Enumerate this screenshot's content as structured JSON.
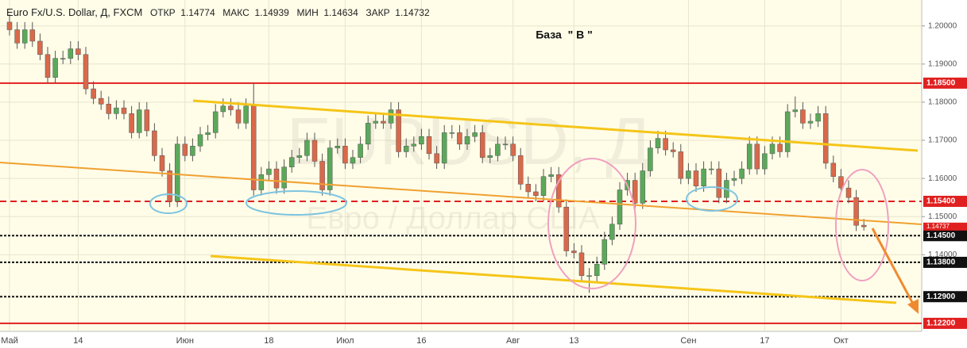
{
  "chart_data": {
    "type": "candlestick",
    "title": "Euro Fx/U.S. Dollar, Д, FXCM",
    "ohlc_header": [
      {
        "label": "ОТКР",
        "value": "1.14774"
      },
      {
        "label": "МАКС",
        "value": "1.14939"
      },
      {
        "label": "МИН",
        "value": "1.14634"
      },
      {
        "label": "ЗАКР",
        "value": "1.14732"
      }
    ],
    "annotation": "База  \" В \"",
    "watermark": [
      "EURUSD, Д",
      "Евро / Доллар США"
    ],
    "categories": [
      "Май",
      null,
      null,
      null,
      null,
      null,
      null,
      null,
      null,
      "14",
      null,
      null,
      null,
      null,
      null,
      null,
      null,
      null,
      null,
      null,
      null,
      null,
      null,
      "Июн",
      null,
      null,
      null,
      null,
      null,
      null,
      null,
      null,
      null,
      null,
      "18",
      null,
      null,
      null,
      null,
      null,
      null,
      null,
      null,
      null,
      "Июл",
      null,
      null,
      null,
      null,
      null,
      null,
      null,
      null,
      null,
      "16",
      null,
      null,
      null,
      null,
      null,
      null,
      null,
      null,
      null,
      null,
      null,
      "Авг",
      null,
      null,
      null,
      null,
      null,
      null,
      null,
      "13",
      null,
      null,
      null,
      null,
      null,
      null,
      null,
      null,
      null,
      null,
      null,
      null,
      null,
      null,
      "Сен",
      null,
      null,
      null,
      null,
      null,
      null,
      null,
      null,
      null,
      "17",
      null,
      null,
      null,
      null,
      null,
      null,
      null,
      null,
      null,
      "Окт",
      null,
      null,
      null
    ],
    "open": [
      1.201,
      1.199,
      1.1955,
      1.199,
      1.196,
      1.1925,
      1.1865,
      1.1915,
      1.1915,
      1.194,
      1.1925,
      1.1835,
      1.181,
      1.1795,
      1.177,
      1.1785,
      1.177,
      1.172,
      1.178,
      1.1725,
      1.166,
      1.162,
      1.154,
      1.169,
      1.166,
      1.1685,
      1.1715,
      1.172,
      1.1775,
      1.179,
      1.178,
      1.1745,
      1.179,
      1.157,
      1.161,
      1.1625,
      1.1575,
      1.163,
      1.1655,
      1.166,
      1.17,
      1.1645,
      1.157,
      1.168,
      1.1685,
      1.164,
      1.1655,
      1.169,
      1.1745,
      1.175,
      1.1745,
      1.178,
      1.167,
      1.1685,
      1.169,
      1.171,
      1.1665,
      1.164,
      1.172,
      1.172,
      1.169,
      1.171,
      1.172,
      1.1655,
      1.166,
      1.169,
      1.169,
      1.166,
      1.1585,
      1.1565,
      1.1555,
      1.1605,
      1.161,
      1.1525,
      1.141,
      1.1405,
      1.1345,
      1.1345,
      1.1375,
      1.144,
      1.148,
      1.157,
      1.1595,
      1.1535,
      1.162,
      1.168,
      1.1705,
      1.1675,
      1.167,
      1.16,
      1.162,
      1.158,
      1.1625,
      1.1625,
      1.155,
      1.1595,
      1.16,
      1.1625,
      1.169,
      1.1625,
      1.1665,
      1.169,
      1.167,
      1.1775,
      1.178,
      1.1745,
      1.175,
      1.177,
      1.164,
      1.1605,
      1.1575,
      1.155,
      1.14774
    ],
    "high": [
      1.203,
      1.201,
      1.201,
      1.201,
      1.198,
      1.1945,
      1.1935,
      1.1935,
      1.196,
      1.196,
      1.1945,
      1.1855,
      1.183,
      1.1815,
      1.1805,
      1.1805,
      1.179,
      1.18,
      1.18,
      1.1745,
      1.168,
      1.164,
      1.171,
      1.171,
      1.1705,
      1.1735,
      1.174,
      1.1795,
      1.181,
      1.181,
      1.18,
      1.181,
      1.185,
      1.163,
      1.1645,
      1.1645,
      1.165,
      1.1675,
      1.168,
      1.172,
      1.172,
      1.1665,
      1.17,
      1.1705,
      1.1705,
      1.1675,
      1.171,
      1.1765,
      1.177,
      1.177,
      1.18,
      1.18,
      1.1705,
      1.171,
      1.173,
      1.173,
      1.1685,
      1.174,
      1.174,
      1.174,
      1.173,
      1.174,
      1.174,
      1.168,
      1.171,
      1.171,
      1.171,
      1.168,
      1.1605,
      1.1585,
      1.1625,
      1.163,
      1.163,
      1.1545,
      1.143,
      1.1425,
      1.1365,
      1.1395,
      1.146,
      1.15,
      1.159,
      1.1615,
      1.1615,
      1.164,
      1.17,
      1.1725,
      1.1725,
      1.1695,
      1.169,
      1.164,
      1.164,
      1.1645,
      1.1645,
      1.1645,
      1.1615,
      1.162,
      1.1645,
      1.171,
      1.171,
      1.1685,
      1.171,
      1.171,
      1.1795,
      1.1815,
      1.18,
      1.177,
      1.179,
      1.179,
      1.166,
      1.1625,
      1.1595,
      1.157,
      1.14939
    ],
    "low": [
      1.1975,
      1.194,
      1.194,
      1.1945,
      1.191,
      1.185,
      1.185,
      1.19,
      1.19,
      1.191,
      1.182,
      1.1795,
      1.178,
      1.1755,
      1.1755,
      1.1755,
      1.1705,
      1.1705,
      1.171,
      1.1645,
      1.1605,
      1.1525,
      1.1525,
      1.1645,
      1.1645,
      1.167,
      1.17,
      1.1705,
      1.176,
      1.1765,
      1.173,
      1.173,
      1.1555,
      1.1555,
      1.1595,
      1.156,
      1.156,
      1.1615,
      1.164,
      1.1645,
      1.163,
      1.1555,
      1.1555,
      1.1665,
      1.1625,
      1.1625,
      1.164,
      1.1675,
      1.173,
      1.173,
      1.173,
      1.1655,
      1.1655,
      1.167,
      1.1675,
      1.165,
      1.1625,
      1.1625,
      1.1705,
      1.1675,
      1.1675,
      1.1695,
      1.164,
      1.164,
      1.1645,
      1.1675,
      1.1645,
      1.157,
      1.155,
      1.154,
      1.154,
      1.159,
      1.151,
      1.1395,
      1.139,
      1.133,
      1.13,
      1.133,
      1.136,
      1.1425,
      1.1465,
      1.1555,
      1.152,
      1.152,
      1.1605,
      1.1665,
      1.166,
      1.1655,
      1.1585,
      1.1585,
      1.1565,
      1.1565,
      1.161,
      1.1535,
      1.1535,
      1.158,
      1.1585,
      1.161,
      1.161,
      1.161,
      1.165,
      1.1655,
      1.1655,
      1.176,
      1.173,
      1.173,
      1.1735,
      1.1625,
      1.159,
      1.156,
      1.1535,
      1.1462,
      1.14634
    ],
    "close": [
      1.199,
      1.1955,
      1.199,
      1.196,
      1.1925,
      1.1865,
      1.1915,
      1.1915,
      1.194,
      1.1925,
      1.1835,
      1.181,
      1.1795,
      1.177,
      1.1785,
      1.177,
      1.172,
      1.178,
      1.1725,
      1.166,
      1.162,
      1.154,
      1.169,
      1.166,
      1.1685,
      1.1715,
      1.172,
      1.1775,
      1.179,
      1.178,
      1.1745,
      1.179,
      1.157,
      1.161,
      1.1625,
      1.1575,
      1.163,
      1.1655,
      1.166,
      1.17,
      1.1645,
      1.157,
      1.168,
      1.1685,
      1.164,
      1.1655,
      1.169,
      1.1745,
      1.175,
      1.1745,
      1.178,
      1.167,
      1.1685,
      1.169,
      1.171,
      1.1665,
      1.164,
      1.172,
      1.172,
      1.169,
      1.171,
      1.172,
      1.1655,
      1.166,
      1.169,
      1.169,
      1.166,
      1.1585,
      1.1565,
      1.1555,
      1.1605,
      1.161,
      1.1525,
      1.141,
      1.1405,
      1.1345,
      1.1345,
      1.1375,
      1.144,
      1.148,
      1.157,
      1.1595,
      1.1535,
      1.162,
      1.168,
      1.1705,
      1.1675,
      1.167,
      1.16,
      1.162,
      1.158,
      1.1625,
      1.1625,
      1.155,
      1.1595,
      1.16,
      1.1625,
      1.169,
      1.1625,
      1.1665,
      1.169,
      1.167,
      1.1775,
      1.178,
      1.1745,
      1.175,
      1.177,
      1.164,
      1.1605,
      1.1575,
      1.155,
      1.1477,
      1.14732
    ],
    "up_color": "#5aa95a",
    "down_color": "#d9694a",
    "ylim": [
      1.1199,
      1.2068
    ],
    "yticks": [
      {
        "value": 1.2,
        "label": "1.20000"
      },
      {
        "value": 1.19,
        "label": "1.19000"
      },
      {
        "value": 1.18,
        "label": "1.18000"
      },
      {
        "value": 1.17,
        "label": "1.17000"
      },
      {
        "value": 1.16,
        "label": "1.16000"
      },
      {
        "value": 1.15,
        "label": "1.15000"
      },
      {
        "value": 1.14,
        "label": "1.14000"
      }
    ],
    "grid": true,
    "levels": [
      {
        "value": 1.185,
        "label": "1.18500",
        "color": "#e02020",
        "style": "solid"
      },
      {
        "value": 1.154,
        "label": "1.15400",
        "color": "#e02020",
        "style": "dashed"
      },
      {
        "value": 1.145,
        "label": "1.14500",
        "color": "#111111",
        "style": "dotted"
      },
      {
        "value": 1.138,
        "label": "1.13800",
        "color": "#111111",
        "style": "dotted"
      },
      {
        "value": 1.129,
        "label": "1.12900",
        "color": "#111111",
        "style": "dotted"
      },
      {
        "value": 1.122,
        "label": "1.12200",
        "color": "#e02020",
        "style": "solid"
      }
    ],
    "last_price": {
      "value": 1.14737,
      "label": "1.14737",
      "color": "#e02020"
    }
  }
}
